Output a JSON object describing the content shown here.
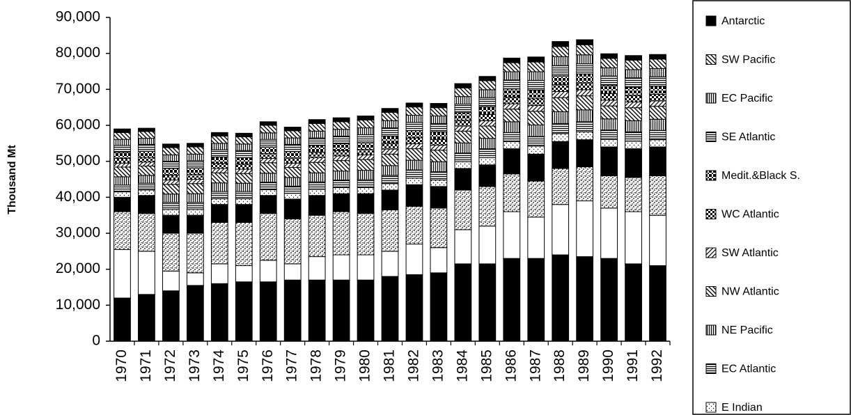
{
  "chart_data": {
    "type": "stacked_bar",
    "y_label": "Thousand Mt",
    "categories": [
      "1970",
      "1971",
      "1972",
      "1973",
      "1974",
      "1975",
      "1976",
      "1977",
      "1978",
      "1979",
      "1980",
      "1981",
      "1982",
      "1983",
      "1984",
      "1985",
      "1986",
      "1987",
      "1988",
      "1989",
      "1990",
      "1991",
      "1992"
    ],
    "ylim": [
      0,
      90000
    ],
    "yticks": [
      0,
      {
        "value": 10000,
        "label": "10,000"
      },
      {
        "value": 20000,
        "label": "20,000"
      },
      {
        "value": 30000,
        "label": "30,000"
      },
      {
        "value": 40000,
        "label": "40,000"
      },
      {
        "value": 50000,
        "label": "50,000"
      },
      {
        "value": 60000,
        "label": "60,000"
      },
      {
        "value": 70000,
        "label": "70,000"
      },
      {
        "value": 80000,
        "label": "80,000"
      },
      {
        "value": 90000,
        "label": "90,000"
      }
    ],
    "series": [
      {
        "color": "#000000",
        "pattern": "solid",
        "values": [
          12000,
          13000,
          14000,
          15500,
          16000,
          16500,
          16500,
          17000,
          17000,
          17000,
          17000,
          18000,
          18500,
          19000,
          21500,
          21500,
          23000,
          23000,
          24000,
          23500,
          23000,
          21500,
          21000
        ]
      },
      {
        "color": "#ffffff",
        "pattern": "solid",
        "values": [
          13500,
          12000,
          5500,
          3500,
          5500,
          4500,
          6000,
          4500,
          6500,
          7000,
          7000,
          7000,
          8500,
          7000,
          9500,
          10500,
          13000,
          11500,
          14000,
          15500,
          14000,
          14500,
          14000
        ]
      },
      {
        "color": "#000000",
        "pattern": "stipple",
        "values": [
          10500,
          10500,
          10500,
          11000,
          11500,
          12000,
          13000,
          12500,
          11500,
          12000,
          11500,
          11500,
          10500,
          11000,
          11000,
          11000,
          10500,
          10000,
          10000,
          9500,
          9000,
          9500,
          11000
        ]
      },
      {
        "color": "#000000",
        "pattern": "solid",
        "values": [
          4000,
          5000,
          5000,
          5000,
          5000,
          5000,
          5000,
          5500,
          5500,
          5000,
          5500,
          5500,
          6000,
          6000,
          6000,
          6000,
          7000,
          7500,
          7500,
          7500,
          8000,
          8000,
          8000
        ]
      },
      {
        "name": "E Indian",
        "color": "#000000",
        "pattern": "dots",
        "values": [
          1500,
          1500,
          1600,
          1600,
          1600,
          1600,
          1600,
          1600,
          1700,
          1700,
          1700,
          1800,
          1800,
          1800,
          1900,
          2000,
          2000,
          2200,
          2200,
          2200,
          2100,
          2100,
          2000
        ]
      },
      {
        "name": "EC Atlantic",
        "color": "#000000",
        "pattern": "hlines",
        "values": [
          1900,
          1900,
          2000,
          2000,
          2000,
          2000,
          2100,
          2000,
          2100,
          2100,
          2200,
          2300,
          2300,
          2300,
          2400,
          2500,
          2500,
          2700,
          2800,
          2800,
          2600,
          2600,
          2600
        ]
      },
      {
        "name": "NE Pacific",
        "color": "#000000",
        "pattern": "vlines",
        "values": [
          2300,
          2200,
          2300,
          2400,
          2400,
          2300,
          2500,
          2400,
          2500,
          2500,
          2600,
          2700,
          2700,
          2800,
          2800,
          2900,
          3000,
          3200,
          3300,
          3300,
          3100,
          3100,
          3100
        ]
      },
      {
        "name": "NW Atlantic",
        "color": "#000000",
        "pattern": "backdiag",
        "values": [
          2700,
          2600,
          2700,
          2800,
          2800,
          2700,
          2900,
          2800,
          2900,
          2900,
          3000,
          3200,
          3200,
          3200,
          3300,
          3400,
          3500,
          3800,
          3900,
          3900,
          3600,
          3600,
          3600
        ]
      },
      {
        "name": "SW Atlantic",
        "color": "#000000",
        "pattern": "diag",
        "values": [
          1100,
          1100,
          1200,
          1200,
          1200,
          1200,
          1200,
          1200,
          1300,
          1300,
          1300,
          1400,
          1400,
          1400,
          1400,
          1500,
          1500,
          1600,
          1700,
          1700,
          1600,
          1600,
          1500
        ]
      },
      {
        "name": "WC Atlantic",
        "color": "#000000",
        "pattern": "checker",
        "values": [
          1300,
          1300,
          1400,
          1400,
          1400,
          1400,
          1400,
          1400,
          1500,
          1500,
          1500,
          1600,
          1600,
          1600,
          1600,
          1700,
          1800,
          1900,
          1900,
          1900,
          1800,
          1800,
          1800
        ]
      },
      {
        "name": "Medit.&Black S.",
        "color": "#000000",
        "pattern": "densechecker",
        "values": [
          1700,
          1700,
          1800,
          1800,
          1800,
          1800,
          1800,
          1800,
          1900,
          1900,
          1900,
          2000,
          2000,
          2100,
          2100,
          2200,
          2300,
          2400,
          2500,
          2500,
          2300,
          2300,
          2300
        ]
      },
      {
        "name": "SE Atlantic",
        "color": "#000000",
        "pattern": "hlines",
        "values": [
          1900,
          1900,
          2000,
          2000,
          2000,
          2000,
          2100,
          2000,
          2100,
          2100,
          2200,
          2300,
          2300,
          2300,
          2400,
          2500,
          2500,
          2700,
          2800,
          2800,
          2600,
          2600,
          2600
        ]
      },
      {
        "name": "EC Pacific",
        "color": "#000000",
        "pattern": "vlines",
        "values": [
          1700,
          1700,
          1800,
          1800,
          1800,
          1800,
          1800,
          1800,
          1900,
          1900,
          1900,
          2000,
          2000,
          2100,
          2100,
          2200,
          2300,
          2400,
          2500,
          2500,
          2300,
          2300,
          2300
        ]
      },
      {
        "name": "SW Pacific",
        "color": "#000000",
        "pattern": "backdiag",
        "values": [
          1900,
          1900,
          2000,
          2000,
          2000,
          2000,
          2100,
          2000,
          2100,
          2100,
          2200,
          2300,
          2300,
          2300,
          2400,
          2500,
          2500,
          2700,
          2800,
          2800,
          2600,
          2600,
          2600
        ]
      },
      {
        "name": "Antarctic",
        "color": "#000000",
        "pattern": "solid",
        "values": [
          1000,
          900,
          1000,
          1000,
          1000,
          1000,
          1000,
          1000,
          1100,
          1100,
          1100,
          1100,
          1100,
          1200,
          1200,
          1200,
          1300,
          1400,
          1400,
          1400,
          1300,
          1300,
          1300
        ]
      }
    ]
  }
}
